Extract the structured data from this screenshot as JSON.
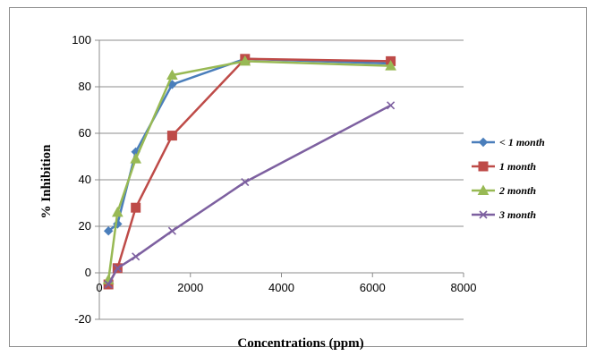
{
  "chart_data": {
    "type": "line",
    "title": "",
    "xlabel": "Concentrations (ppm)",
    "ylabel": "% Inhibition",
    "xlim": [
      0,
      8000
    ],
    "ylim": [
      -20,
      100
    ],
    "xticks": [
      0,
      2000,
      4000,
      6000,
      8000
    ],
    "yticks": [
      -20,
      0,
      20,
      40,
      60,
      80,
      100
    ],
    "grid": "horizontal",
    "legend_position": "right",
    "series": [
      {
        "name": "< 1 month",
        "color": "#4a7ebb",
        "marker": "diamond",
        "points": [
          [
            200,
            18
          ],
          [
            400,
            21
          ],
          [
            800,
            52
          ],
          [
            1600,
            81
          ],
          [
            3200,
            92
          ],
          [
            6400,
            90
          ]
        ]
      },
      {
        "name": "1 month",
        "color": "#be4b48",
        "marker": "square",
        "points": [
          [
            200,
            -5
          ],
          [
            400,
            2
          ],
          [
            800,
            28
          ],
          [
            1600,
            59
          ],
          [
            3200,
            92
          ],
          [
            6400,
            91
          ]
        ]
      },
      {
        "name": "2 month",
        "color": "#98b954",
        "marker": "triangle",
        "points": [
          [
            200,
            -3
          ],
          [
            400,
            26
          ],
          [
            800,
            49
          ],
          [
            1600,
            85
          ],
          [
            3200,
            91
          ],
          [
            6400,
            89
          ]
        ]
      },
      {
        "name": "3 month",
        "color": "#7d60a0",
        "marker": "x",
        "points": [
          [
            200,
            -5
          ],
          [
            400,
            2
          ],
          [
            800,
            7
          ],
          [
            1600,
            18
          ],
          [
            3200,
            39
          ],
          [
            6400,
            72
          ]
        ]
      }
    ]
  }
}
